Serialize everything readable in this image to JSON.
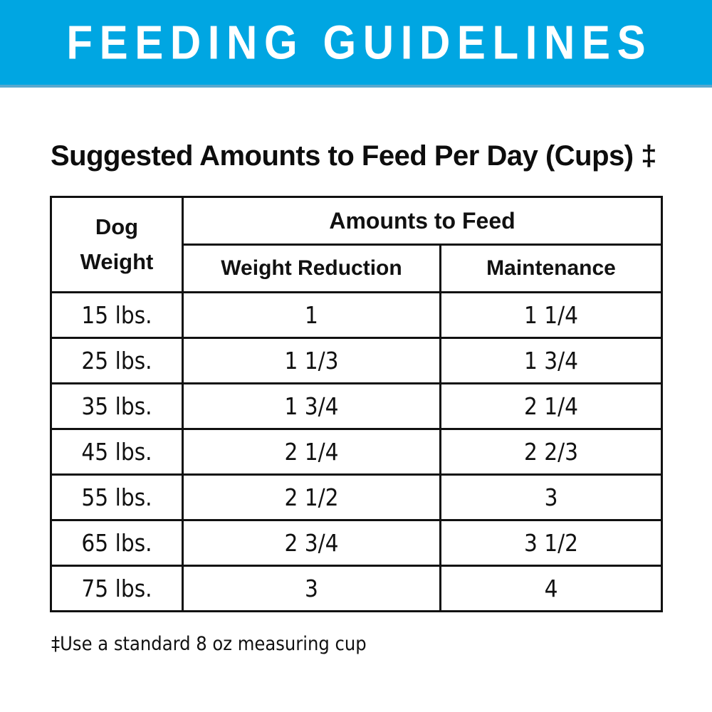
{
  "banner": {
    "title": "FEEDING GUIDELINES",
    "bg_color": "#00A6E2",
    "text_color": "#FFFFFF"
  },
  "heading": "Suggested Amounts to Feed Per Day (Cups) ‡",
  "table": {
    "dog_weight_header": "Dog\nWeight",
    "group_header": "Amounts to Feed",
    "sub_headers": {
      "weight_reduction": "Weight Reduction",
      "maintenance": "Maintenance"
    },
    "rows": [
      {
        "weight": "15 lbs.",
        "reduction": "1",
        "maintenance": "1 1/4"
      },
      {
        "weight": "25 lbs.",
        "reduction": "1 1/3",
        "maintenance": "1 3/4"
      },
      {
        "weight": "35 lbs.",
        "reduction": "1 3/4",
        "maintenance": "2 1/4"
      },
      {
        "weight": "45 lbs.",
        "reduction": "2 1/4",
        "maintenance": "2 2/3"
      },
      {
        "weight": "55 lbs.",
        "reduction": "2 1/2",
        "maintenance": "3"
      },
      {
        "weight": "65 lbs.",
        "reduction": "2 3/4",
        "maintenance": "3 1/2"
      },
      {
        "weight": "75 lbs.",
        "reduction": "3",
        "maintenance": "4"
      }
    ]
  },
  "footnote": "‡Use a standard 8 oz measuring cup"
}
